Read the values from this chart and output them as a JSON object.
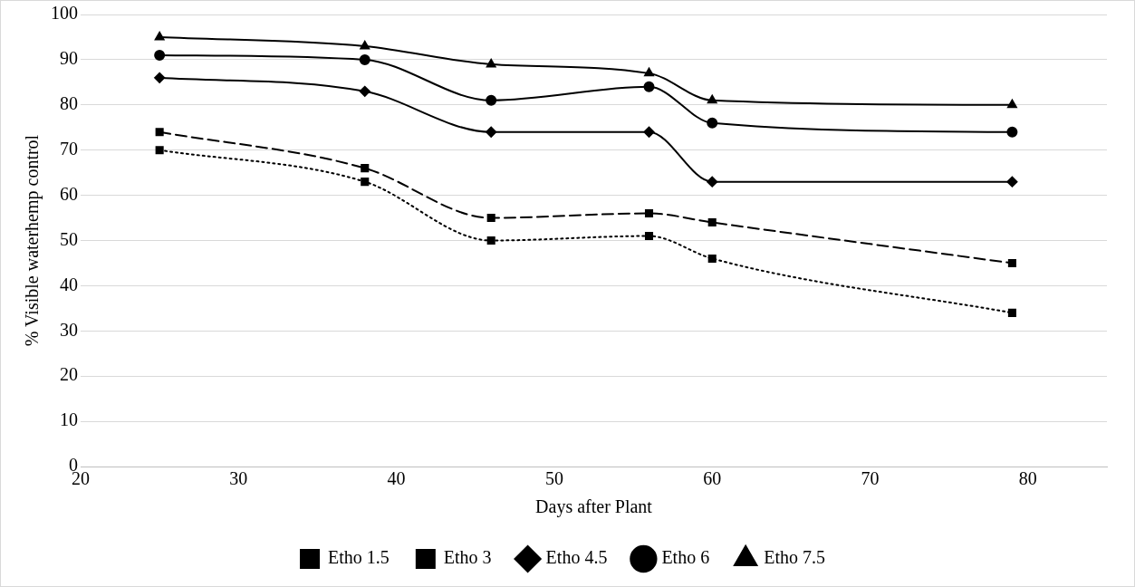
{
  "chart_data": {
    "type": "line",
    "xlabel": "Days after Plant",
    "ylabel": "% Visible waterhemp control",
    "x": [
      25,
      38,
      46,
      56,
      60,
      79
    ],
    "series": [
      {
        "name": "Etho 1.5",
        "color": "#000000",
        "marker": "square",
        "line_style": "dotted",
        "values": [
          70,
          63,
          50,
          51,
          46,
          34
        ]
      },
      {
        "name": "Etho 3",
        "color": "#000000",
        "marker": "square",
        "line_style": "dashed",
        "values": [
          74,
          66,
          55,
          56,
          54,
          45
        ]
      },
      {
        "name": "Etho 4.5",
        "color": "#000000",
        "marker": "diamond",
        "line_style": "solid",
        "values": [
          86,
          83,
          74,
          74,
          63,
          63
        ]
      },
      {
        "name": "Etho 6",
        "color": "#000000",
        "marker": "circle",
        "line_style": "solid",
        "values": [
          91,
          90,
          81,
          84,
          76,
          74
        ]
      },
      {
        "name": "Etho 7.5",
        "color": "#000000",
        "marker": "triangle",
        "line_style": "solid",
        "values": [
          95,
          93,
          89,
          87,
          81,
          80
        ]
      }
    ],
    "xlim": [
      20,
      85
    ],
    "xticks": [
      20,
      30,
      40,
      50,
      60,
      70,
      80
    ],
    "ylim": [
      0,
      100
    ],
    "yticks": [
      0,
      10,
      20,
      30,
      40,
      50,
      60,
      70,
      80,
      90,
      100
    ],
    "grid": "y",
    "legend": "bottom"
  }
}
